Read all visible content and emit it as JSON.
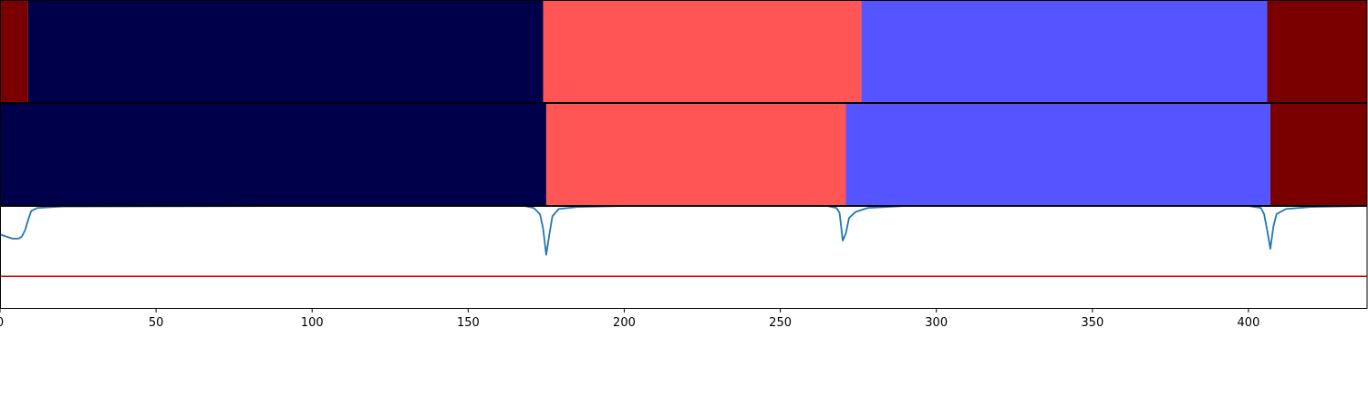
{
  "chart_data": {
    "type": "segmentation-timeline",
    "xlim": [
      0,
      438
    ],
    "x_ticks": [
      0,
      50,
      100,
      150,
      200,
      250,
      300,
      350,
      400
    ],
    "tick_labels": [
      "0",
      "50",
      "100",
      "150",
      "200",
      "250",
      "300",
      "350",
      "400"
    ],
    "colors": {
      "class_a": "#7a0000",
      "class_b": "#00004a",
      "class_c": "#ff5555",
      "class_d": "#5555ff",
      "signal": "#1f77b4",
      "threshold": "#dd0000"
    },
    "segment_rows": [
      {
        "segments": [
          {
            "start": 0,
            "end": 9,
            "color": "#7a0000"
          },
          {
            "start": 9,
            "end": 174,
            "color": "#00004a"
          },
          {
            "start": 174,
            "end": 276,
            "color": "#ff5555"
          },
          {
            "start": 276,
            "end": 406,
            "color": "#5555ff"
          },
          {
            "start": 406,
            "end": 438,
            "color": "#7a0000"
          }
        ]
      },
      {
        "segments": [
          {
            "start": 0,
            "end": 175,
            "color": "#00004a"
          },
          {
            "start": 175,
            "end": 271,
            "color": "#ff5555"
          },
          {
            "start": 271,
            "end": 407,
            "color": "#5555ff"
          },
          {
            "start": 407,
            "end": 438,
            "color": "#7a0000"
          }
        ]
      }
    ],
    "signal_panel": {
      "ylim": [
        0,
        1
      ],
      "threshold": 0.31,
      "points": [
        [
          0,
          0.72
        ],
        [
          2,
          0.7
        ],
        [
          4,
          0.68
        ],
        [
          6,
          0.68
        ],
        [
          7,
          0.7
        ],
        [
          8,
          0.76
        ],
        [
          9,
          0.86
        ],
        [
          10,
          0.95
        ],
        [
          12,
          0.98
        ],
        [
          20,
          0.995
        ],
        [
          100,
          1.0
        ],
        [
          168,
          1.0
        ],
        [
          171,
          0.98
        ],
        [
          173,
          0.92
        ],
        [
          174,
          0.78
        ],
        [
          175,
          0.52
        ],
        [
          176,
          0.72
        ],
        [
          177,
          0.9
        ],
        [
          179,
          0.97
        ],
        [
          185,
          0.99
        ],
        [
          200,
          1.0
        ],
        [
          265,
          1.0
        ],
        [
          268,
          0.98
        ],
        [
          269,
          0.93
        ],
        [
          270,
          0.66
        ],
        [
          271,
          0.73
        ],
        [
          272,
          0.88
        ],
        [
          274,
          0.94
        ],
        [
          278,
          0.98
        ],
        [
          290,
          1.0
        ],
        [
          400,
          1.0
        ],
        [
          404,
          0.98
        ],
        [
          405,
          0.92
        ],
        [
          406,
          0.76
        ],
        [
          407,
          0.58
        ],
        [
          408,
          0.8
        ],
        [
          409,
          0.92
        ],
        [
          412,
          0.97
        ],
        [
          420,
          0.99
        ],
        [
          438,
          1.0
        ]
      ]
    }
  }
}
